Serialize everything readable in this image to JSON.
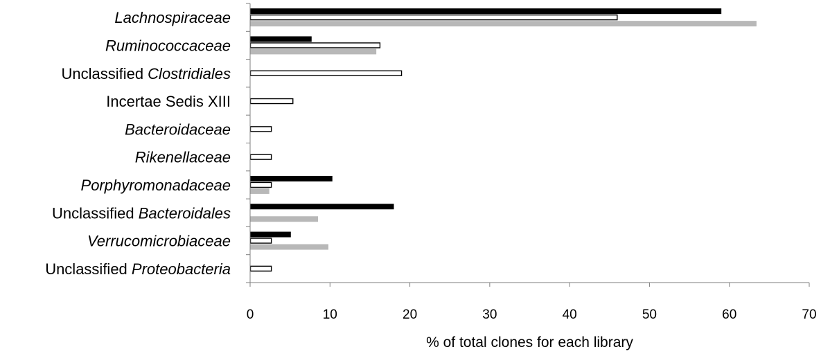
{
  "chart_data": {
    "type": "bar",
    "orientation": "horizontal",
    "categories": [
      {
        "parts": [
          {
            "text": "Lachnospiraceae",
            "italic": true
          }
        ]
      },
      {
        "parts": [
          {
            "text": "Ruminococcaceae",
            "italic": true
          }
        ]
      },
      {
        "parts": [
          {
            "text": "Unclassified ",
            "italic": false
          },
          {
            "text": "Clostridiales",
            "italic": true
          }
        ]
      },
      {
        "parts": [
          {
            "text": "Incertae Sedis XIII",
            "italic": false
          }
        ]
      },
      {
        "parts": [
          {
            "text": "Bacteroidaceae",
            "italic": true
          }
        ]
      },
      {
        "parts": [
          {
            "text": "Rikenellaceae",
            "italic": true
          }
        ]
      },
      {
        "parts": [
          {
            "text": "Porphyromonadaceae",
            "italic": true
          }
        ]
      },
      {
        "parts": [
          {
            "text": "Unclassified ",
            "italic": false
          },
          {
            "text": "Bacteroidales",
            "italic": true
          }
        ]
      },
      {
        "parts": [
          {
            "text": "Verrucomicrobiaceae",
            "italic": true
          }
        ]
      },
      {
        "parts": [
          {
            "text": "Unclassified ",
            "italic": false
          },
          {
            "text": "Proteobacteria",
            "italic": true
          }
        ]
      }
    ],
    "series": [
      {
        "color": "#000000",
        "style": "filled",
        "values": [
          59,
          7.7,
          0,
          0,
          0,
          0,
          10.3,
          18,
          5.1,
          0
        ]
      },
      {
        "color": "#ffffff",
        "style": "outlined",
        "values": [
          46,
          16.3,
          19,
          5.4,
          2.7,
          2.7,
          2.7,
          0,
          2.7,
          2.7
        ]
      },
      {
        "color": "#b8b8b8",
        "style": "filled",
        "values": [
          63.4,
          15.8,
          0,
          0,
          0,
          0,
          2.4,
          8.5,
          9.8,
          0
        ]
      }
    ],
    "xlabel": "% of total clones for each library",
    "xlim": [
      0,
      70
    ],
    "xticks": [
      "0",
      "10",
      "20",
      "30",
      "40",
      "50",
      "60",
      "70"
    ],
    "grid": false
  }
}
